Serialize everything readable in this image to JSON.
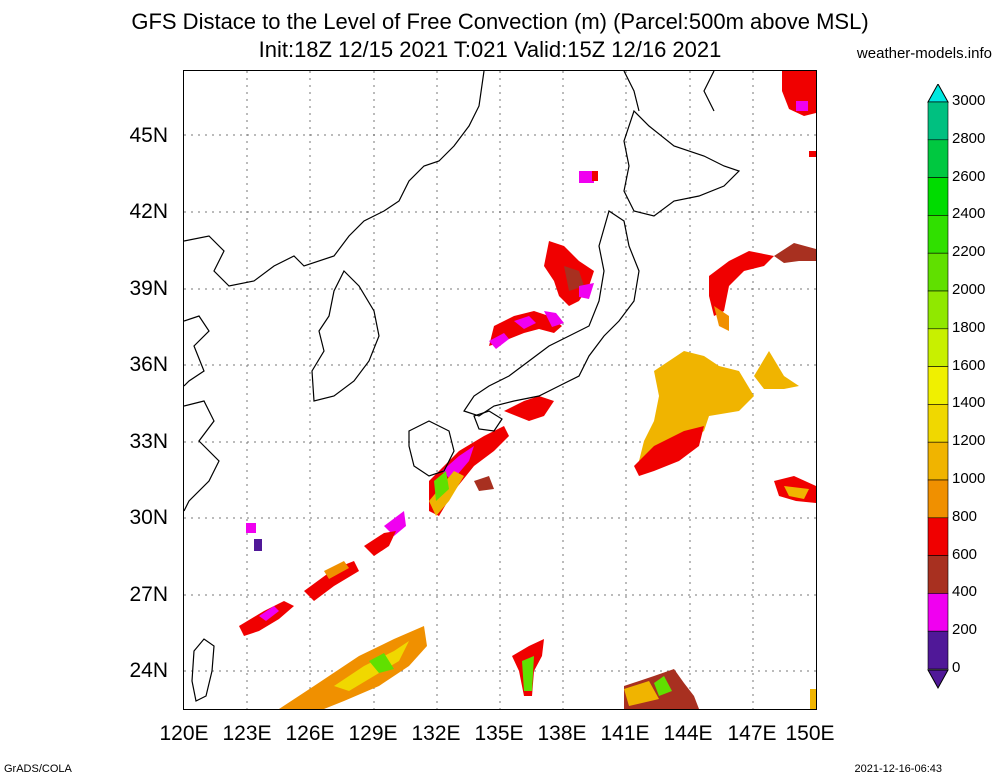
{
  "title_line1": "GFS Distace to the Level of Free Convection (m) (Parcel:500m above MSL)",
  "title_line2": "Init:18Z 12/15 2021 T:021 Valid:15Z 12/16 2021",
  "source": "weather-models.info",
  "footer_left": "GrADS/COLA",
  "footer_right": "2021-12-16-06:43",
  "lat_labels": [
    "45N",
    "42N",
    "39N",
    "36N",
    "33N",
    "30N",
    "27N",
    "24N"
  ],
  "lon_labels": [
    "120E",
    "123E",
    "126E",
    "129E",
    "132E",
    "135E",
    "138E",
    "141E",
    "144E",
    "147E",
    "150E"
  ],
  "colorbar": {
    "labels": [
      "3000",
      "2800",
      "2600",
      "2400",
      "2200",
      "2000",
      "1800",
      "1600",
      "1400",
      "1200",
      "1000",
      "800",
      "600",
      "400",
      "200",
      "0"
    ],
    "colors": [
      "#00d8c8",
      "#00c080",
      "#00c840",
      "#00dc00",
      "#30e000",
      "#60e000",
      "#90e800",
      "#c8f000",
      "#f0f000",
      "#f0d800",
      "#f0b400",
      "#f09000",
      "#f00000",
      "#a83020",
      "#f000f0",
      "#501898"
    ]
  },
  "colors": {
    "low_purple": "#501898",
    "magenta": "#f000f0",
    "brown": "#a83020",
    "red": "#f00000",
    "orange": "#f09000",
    "amber": "#f0b400",
    "yellow": "#f0d800",
    "green": "#60e000"
  }
}
